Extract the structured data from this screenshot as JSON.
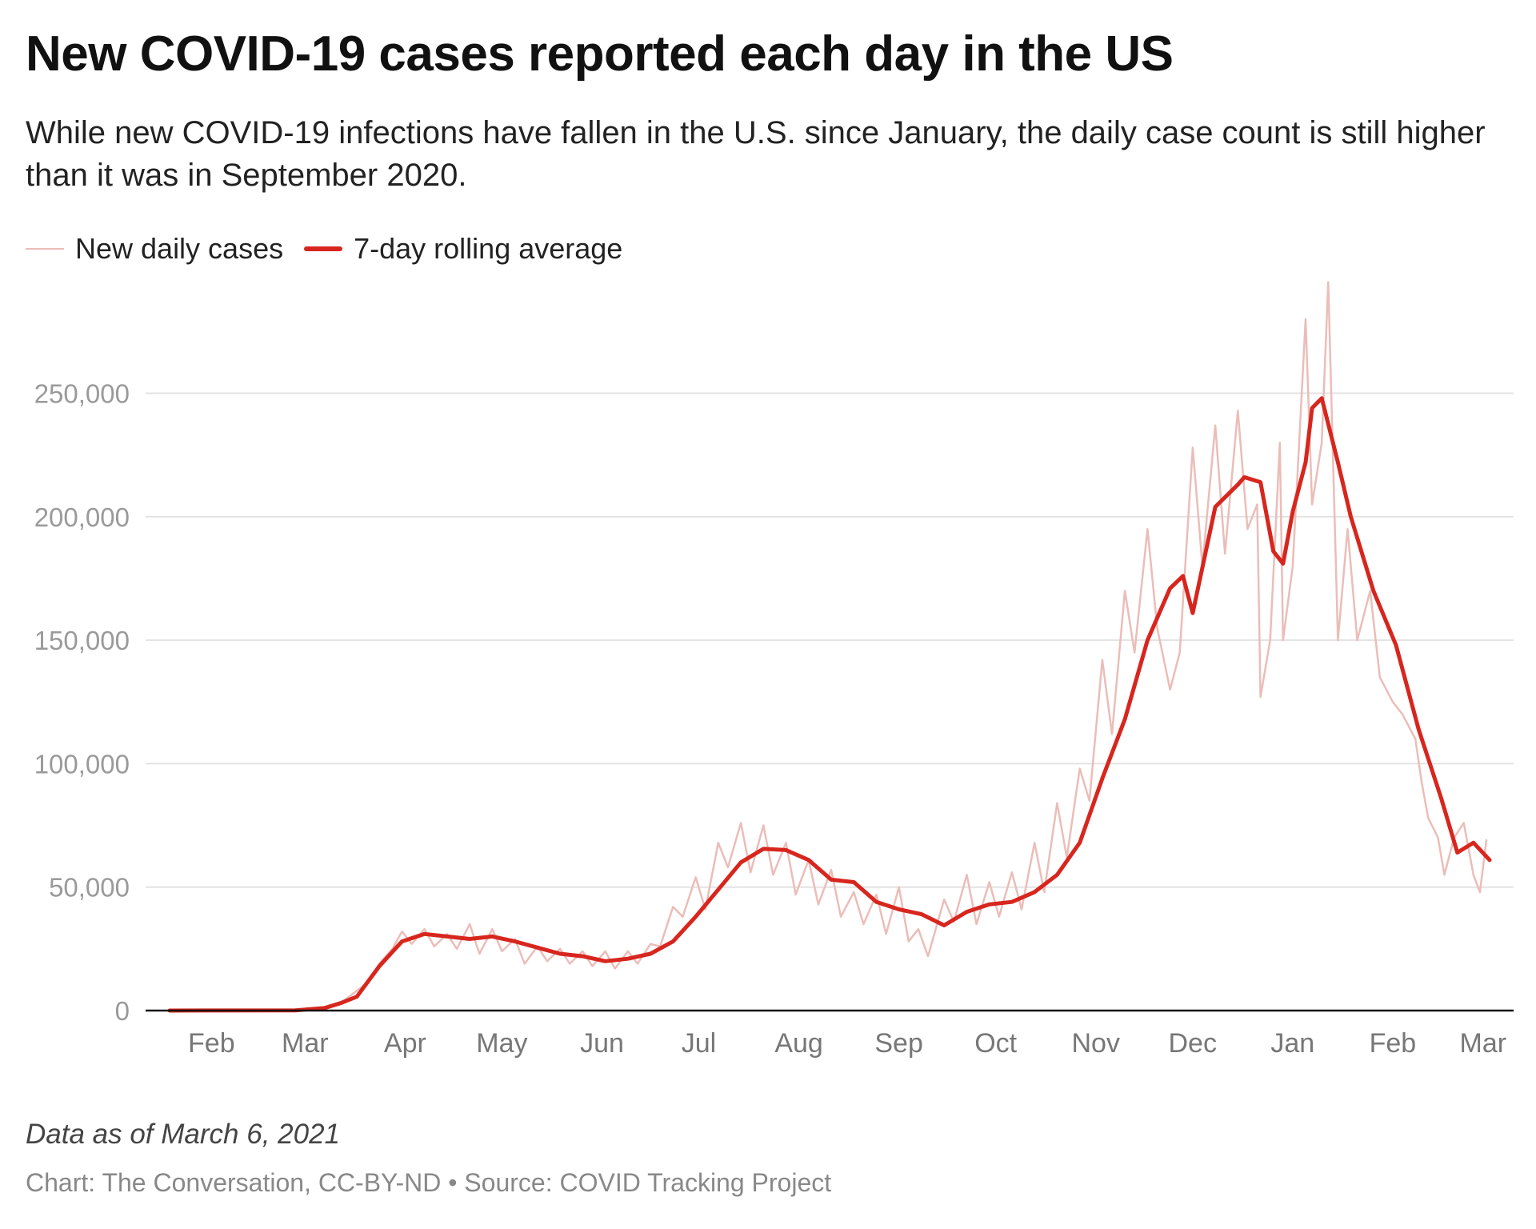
{
  "chart_data": {
    "type": "line",
    "title": "New COVID-19 cases reported each day in the US",
    "subtitle": "While new COVID-19 infections have fallen in the U.S. since January, the daily case count is still higher than it was in September 2020.",
    "xlabel": "",
    "ylabel": "",
    "xlim": [
      "2020-01-22",
      "2021-03-06"
    ],
    "ylim": [
      0,
      300000
    ],
    "y_ticks": [
      0,
      50000,
      100000,
      150000,
      200000,
      250000
    ],
    "y_tick_labels": [
      "0",
      "50,000",
      "100,000",
      "150,000",
      "200,000",
      "250,000"
    ],
    "x_ticks": [
      "2020-02-01",
      "2020-03-01",
      "2020-04-01",
      "2020-05-01",
      "2020-06-01",
      "2020-07-01",
      "2020-08-01",
      "2020-09-01",
      "2020-10-01",
      "2020-11-01",
      "2020-12-01",
      "2021-01-01",
      "2021-02-01",
      "2021-03-01"
    ],
    "x_tick_labels": [
      "Feb",
      "Mar",
      "Apr",
      "May",
      "Jun",
      "Jul",
      "Aug",
      "Sep",
      "Oct",
      "Nov",
      "Dec",
      "Jan",
      "Feb",
      "Mar"
    ],
    "grid": true,
    "legend_position": "top-left",
    "series": [
      {
        "name": "New daily cases",
        "color": "#ebbdb8",
        "points": [
          [
            "2020-01-22",
            0
          ],
          [
            "2020-02-15",
            0
          ],
          [
            "2020-03-01",
            10
          ],
          [
            "2020-03-10",
            500
          ],
          [
            "2020-03-15",
            3000
          ],
          [
            "2020-03-20",
            8000
          ],
          [
            "2020-03-24",
            12000
          ],
          [
            "2020-03-27",
            19000
          ],
          [
            "2020-03-31",
            25000
          ],
          [
            "2020-04-03",
            32000
          ],
          [
            "2020-04-06",
            27000
          ],
          [
            "2020-04-10",
            33000
          ],
          [
            "2020-04-13",
            26000
          ],
          [
            "2020-04-17",
            31000
          ],
          [
            "2020-04-20",
            25000
          ],
          [
            "2020-04-24",
            35000
          ],
          [
            "2020-04-27",
            23000
          ],
          [
            "2020-05-01",
            33000
          ],
          [
            "2020-05-04",
            24000
          ],
          [
            "2020-05-08",
            29000
          ],
          [
            "2020-05-11",
            19000
          ],
          [
            "2020-05-15",
            26000
          ],
          [
            "2020-05-18",
            20000
          ],
          [
            "2020-05-22",
            25000
          ],
          [
            "2020-05-25",
            19000
          ],
          [
            "2020-05-29",
            24000
          ],
          [
            "2020-06-01",
            18000
          ],
          [
            "2020-06-05",
            24000
          ],
          [
            "2020-06-08",
            17000
          ],
          [
            "2020-06-12",
            24000
          ],
          [
            "2020-06-15",
            19000
          ],
          [
            "2020-06-19",
            27000
          ],
          [
            "2020-06-22",
            26000
          ],
          [
            "2020-06-26",
            42000
          ],
          [
            "2020-06-29",
            38000
          ],
          [
            "2020-07-03",
            54000
          ],
          [
            "2020-07-06",
            41000
          ],
          [
            "2020-07-10",
            68000
          ],
          [
            "2020-07-13",
            58000
          ],
          [
            "2020-07-17",
            76000
          ],
          [
            "2020-07-20",
            56000
          ],
          [
            "2020-07-24",
            75000
          ],
          [
            "2020-07-27",
            55000
          ],
          [
            "2020-07-31",
            68000
          ],
          [
            "2020-08-03",
            47000
          ],
          [
            "2020-08-07",
            61000
          ],
          [
            "2020-08-10",
            43000
          ],
          [
            "2020-08-14",
            57000
          ],
          [
            "2020-08-17",
            38000
          ],
          [
            "2020-08-21",
            48000
          ],
          [
            "2020-08-24",
            35000
          ],
          [
            "2020-08-28",
            47000
          ],
          [
            "2020-08-31",
            31000
          ],
          [
            "2020-09-04",
            50000
          ],
          [
            "2020-09-07",
            28000
          ],
          [
            "2020-09-10",
            33000
          ],
          [
            "2020-09-13",
            22000
          ],
          [
            "2020-09-18",
            45000
          ],
          [
            "2020-09-21",
            36000
          ],
          [
            "2020-09-25",
            55000
          ],
          [
            "2020-09-28",
            35000
          ],
          [
            "2020-10-02",
            52000
          ],
          [
            "2020-10-05",
            38000
          ],
          [
            "2020-10-09",
            56000
          ],
          [
            "2020-10-12",
            41000
          ],
          [
            "2020-10-16",
            68000
          ],
          [
            "2020-10-19",
            48000
          ],
          [
            "2020-10-23",
            84000
          ],
          [
            "2020-10-26",
            62000
          ],
          [
            "2020-10-30",
            98000
          ],
          [
            "2020-11-02",
            85000
          ],
          [
            "2020-11-06",
            142000
          ],
          [
            "2020-11-09",
            112000
          ],
          [
            "2020-11-13",
            170000
          ],
          [
            "2020-11-16",
            145000
          ],
          [
            "2020-11-20",
            195000
          ],
          [
            "2020-11-23",
            155000
          ],
          [
            "2020-11-27",
            130000
          ],
          [
            "2020-11-30",
            145000
          ],
          [
            "2020-12-04",
            228000
          ],
          [
            "2020-12-07",
            180000
          ],
          [
            "2020-12-11",
            237000
          ],
          [
            "2020-12-14",
            185000
          ],
          [
            "2020-12-18",
            243000
          ],
          [
            "2020-12-21",
            195000
          ],
          [
            "2020-12-24",
            205000
          ],
          [
            "2020-12-25",
            127000
          ],
          [
            "2020-12-28",
            150000
          ],
          [
            "2020-12-31",
            230000
          ],
          [
            "2021-01-01",
            150000
          ],
          [
            "2021-01-04",
            180000
          ],
          [
            "2021-01-08",
            280000
          ],
          [
            "2021-01-10",
            205000
          ],
          [
            "2021-01-13",
            230000
          ],
          [
            "2021-01-15",
            295000
          ],
          [
            "2021-01-18",
            150000
          ],
          [
            "2021-01-21",
            195000
          ],
          [
            "2021-01-24",
            150000
          ],
          [
            "2021-01-28",
            170000
          ],
          [
            "2021-01-31",
            135000
          ],
          [
            "2021-02-04",
            125000
          ],
          [
            "2021-02-07",
            120000
          ],
          [
            "2021-02-11",
            110000
          ],
          [
            "2021-02-13",
            92000
          ],
          [
            "2021-02-15",
            78000
          ],
          [
            "2021-02-18",
            70000
          ],
          [
            "2021-02-20",
            55000
          ],
          [
            "2021-02-23",
            70000
          ],
          [
            "2021-02-26",
            76000
          ],
          [
            "2021-03-01",
            55000
          ],
          [
            "2021-03-03",
            48000
          ],
          [
            "2021-03-05",
            69000
          ]
        ]
      },
      {
        "name": "7-day rolling average",
        "color": "#d7261e",
        "points": [
          [
            "2020-01-22",
            0
          ],
          [
            "2020-03-01",
            100
          ],
          [
            "2020-03-10",
            1000
          ],
          [
            "2020-03-15",
            3000
          ],
          [
            "2020-03-20",
            5600
          ],
          [
            "2020-03-27",
            18000
          ],
          [
            "2020-04-03",
            28000
          ],
          [
            "2020-04-10",
            31000
          ],
          [
            "2020-04-17",
            30000
          ],
          [
            "2020-04-24",
            29000
          ],
          [
            "2020-05-01",
            30000
          ],
          [
            "2020-05-08",
            28000
          ],
          [
            "2020-05-15",
            25500
          ],
          [
            "2020-05-22",
            23000
          ],
          [
            "2020-05-29",
            22000
          ],
          [
            "2020-06-05",
            20000
          ],
          [
            "2020-06-12",
            21000
          ],
          [
            "2020-06-19",
            23000
          ],
          [
            "2020-06-26",
            28000
          ],
          [
            "2020-07-03",
            38000
          ],
          [
            "2020-07-10",
            49000
          ],
          [
            "2020-07-17",
            60000
          ],
          [
            "2020-07-24",
            65500
          ],
          [
            "2020-07-31",
            65000
          ],
          [
            "2020-08-07",
            61000
          ],
          [
            "2020-08-14",
            53000
          ],
          [
            "2020-08-21",
            52000
          ],
          [
            "2020-08-28",
            44000
          ],
          [
            "2020-09-04",
            41000
          ],
          [
            "2020-09-11",
            39000
          ],
          [
            "2020-09-18",
            34500
          ],
          [
            "2020-09-25",
            40000
          ],
          [
            "2020-10-02",
            43000
          ],
          [
            "2020-10-09",
            44000
          ],
          [
            "2020-10-16",
            48000
          ],
          [
            "2020-10-23",
            55000
          ],
          [
            "2020-10-30",
            68000
          ],
          [
            "2020-11-06",
            94000
          ],
          [
            "2020-11-13",
            118000
          ],
          [
            "2020-11-20",
            150000
          ],
          [
            "2020-11-27",
            171000
          ],
          [
            "2020-12-01",
            176000
          ],
          [
            "2020-12-04",
            161000
          ],
          [
            "2020-12-11",
            204000
          ],
          [
            "2020-12-18",
            213000
          ],
          [
            "2020-12-20",
            216000
          ],
          [
            "2020-12-25",
            214000
          ],
          [
            "2020-12-29",
            186000
          ],
          [
            "2021-01-01",
            181000
          ],
          [
            "2021-01-04",
            202000
          ],
          [
            "2021-01-08",
            222000
          ],
          [
            "2021-01-10",
            244000
          ],
          [
            "2021-01-13",
            248000
          ],
          [
            "2021-01-18",
            222000
          ],
          [
            "2021-01-22",
            200000
          ],
          [
            "2021-01-29",
            170000
          ],
          [
            "2021-02-05",
            148000
          ],
          [
            "2021-02-12",
            114000
          ],
          [
            "2021-02-19",
            86000
          ],
          [
            "2021-02-24",
            64000
          ],
          [
            "2021-03-01",
            68000
          ],
          [
            "2021-03-06",
            61000
          ]
        ]
      }
    ]
  },
  "header": {
    "title": "New COVID-19 cases reported each day in the US",
    "subtitle": "While new COVID-19 infections have fallen in the U.S. since January, the daily case count is still higher than it was in September 2020."
  },
  "legend": {
    "items": [
      {
        "label": "New daily cases",
        "color": "#ebbdb8"
      },
      {
        "label": "7-day rolling average",
        "color": "#d7261e"
      }
    ]
  },
  "footer": {
    "note": "Data as of March 6, 2021",
    "source": "Chart: The Conversation, CC-BY-ND • Source: COVID Tracking Project"
  }
}
